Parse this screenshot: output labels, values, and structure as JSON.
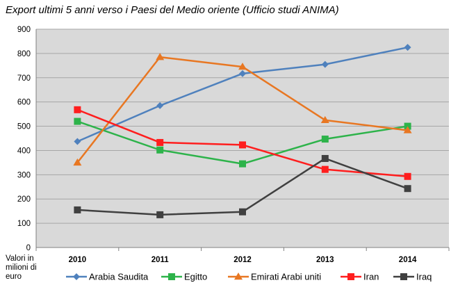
{
  "chart_data": {
    "type": "line",
    "title": "Export ultimi 5 anni verso i Paesi del Medio oriente (Ufficio studi ANIMA)",
    "ylabel_lines": [
      "Valori in",
      "milioni  di",
      "euro"
    ],
    "xlabel": "",
    "categories": [
      "2010",
      "2011",
      "2012",
      "2013",
      "2014"
    ],
    "ylim": [
      0,
      900
    ],
    "yticks": [
      "0",
      "100",
      "200",
      "300",
      "400",
      "500",
      "600",
      "700",
      "800",
      "900"
    ],
    "grid": true,
    "legend_position": "bottom",
    "series": [
      {
        "name": "Arabia Saudita",
        "color": "#4F81BD",
        "marker": "diamond",
        "values": [
          437,
          585,
          717,
          755,
          825
        ]
      },
      {
        "name": "Egitto",
        "color": "#2DB34A",
        "marker": "square",
        "values": [
          520,
          402,
          345,
          447,
          500
        ]
      },
      {
        "name": "Emirati Arabi uniti",
        "color": "#E87722",
        "marker": "triangle",
        "values": [
          350,
          785,
          745,
          525,
          483
        ]
      },
      {
        "name": "Iran",
        "color": "#FF1E1E",
        "marker": "square",
        "values": [
          568,
          433,
          423,
          322,
          293
        ]
      },
      {
        "name": "Iraq",
        "color": "#404040",
        "marker": "square",
        "values": [
          155,
          135,
          147,
          367,
          243
        ]
      }
    ]
  }
}
